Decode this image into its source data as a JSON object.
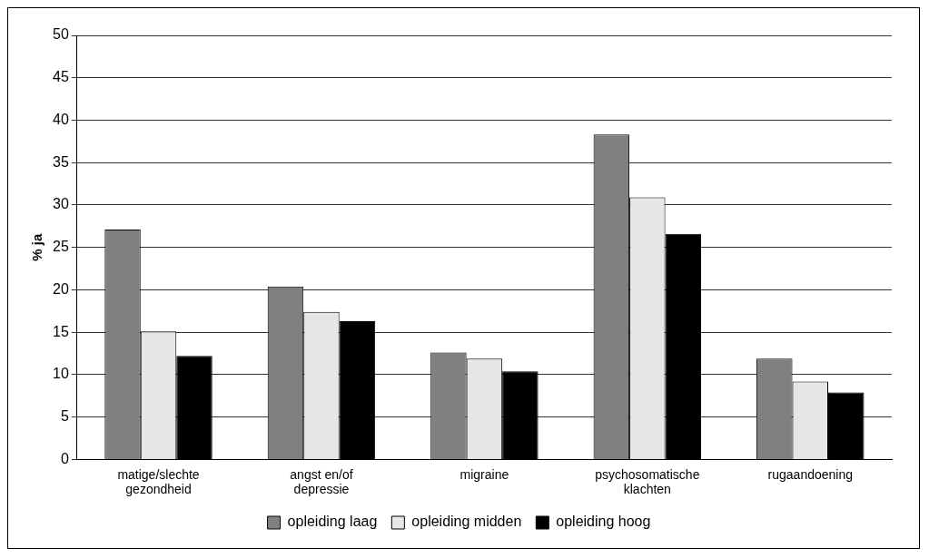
{
  "chart_data": {
    "type": "bar",
    "ylabel": "% ja",
    "categories": [
      "matige/slechte gezondheid",
      "angst en/of depressie",
      "migraine",
      "psychosomatische klachten",
      "rugaandoening"
    ],
    "series": [
      {
        "name": "opleiding laag",
        "color": "#808080",
        "values": [
          27.1,
          20.4,
          12.6,
          38.3,
          11.9
        ]
      },
      {
        "name": "opleiding midden",
        "color": "#e6e6e6",
        "values": [
          15.1,
          17.4,
          11.9,
          30.9,
          9.2
        ]
      },
      {
        "name": "opleiding hoog",
        "color": "#000000",
        "values": [
          12.2,
          16.3,
          10.4,
          26.6,
          7.9
        ]
      }
    ],
    "ylim": [
      0,
      50
    ],
    "yticks": [
      0,
      5,
      10,
      15,
      20,
      25,
      30,
      35,
      40,
      45,
      50
    ],
    "grid": "y",
    "legend": "bottom"
  }
}
